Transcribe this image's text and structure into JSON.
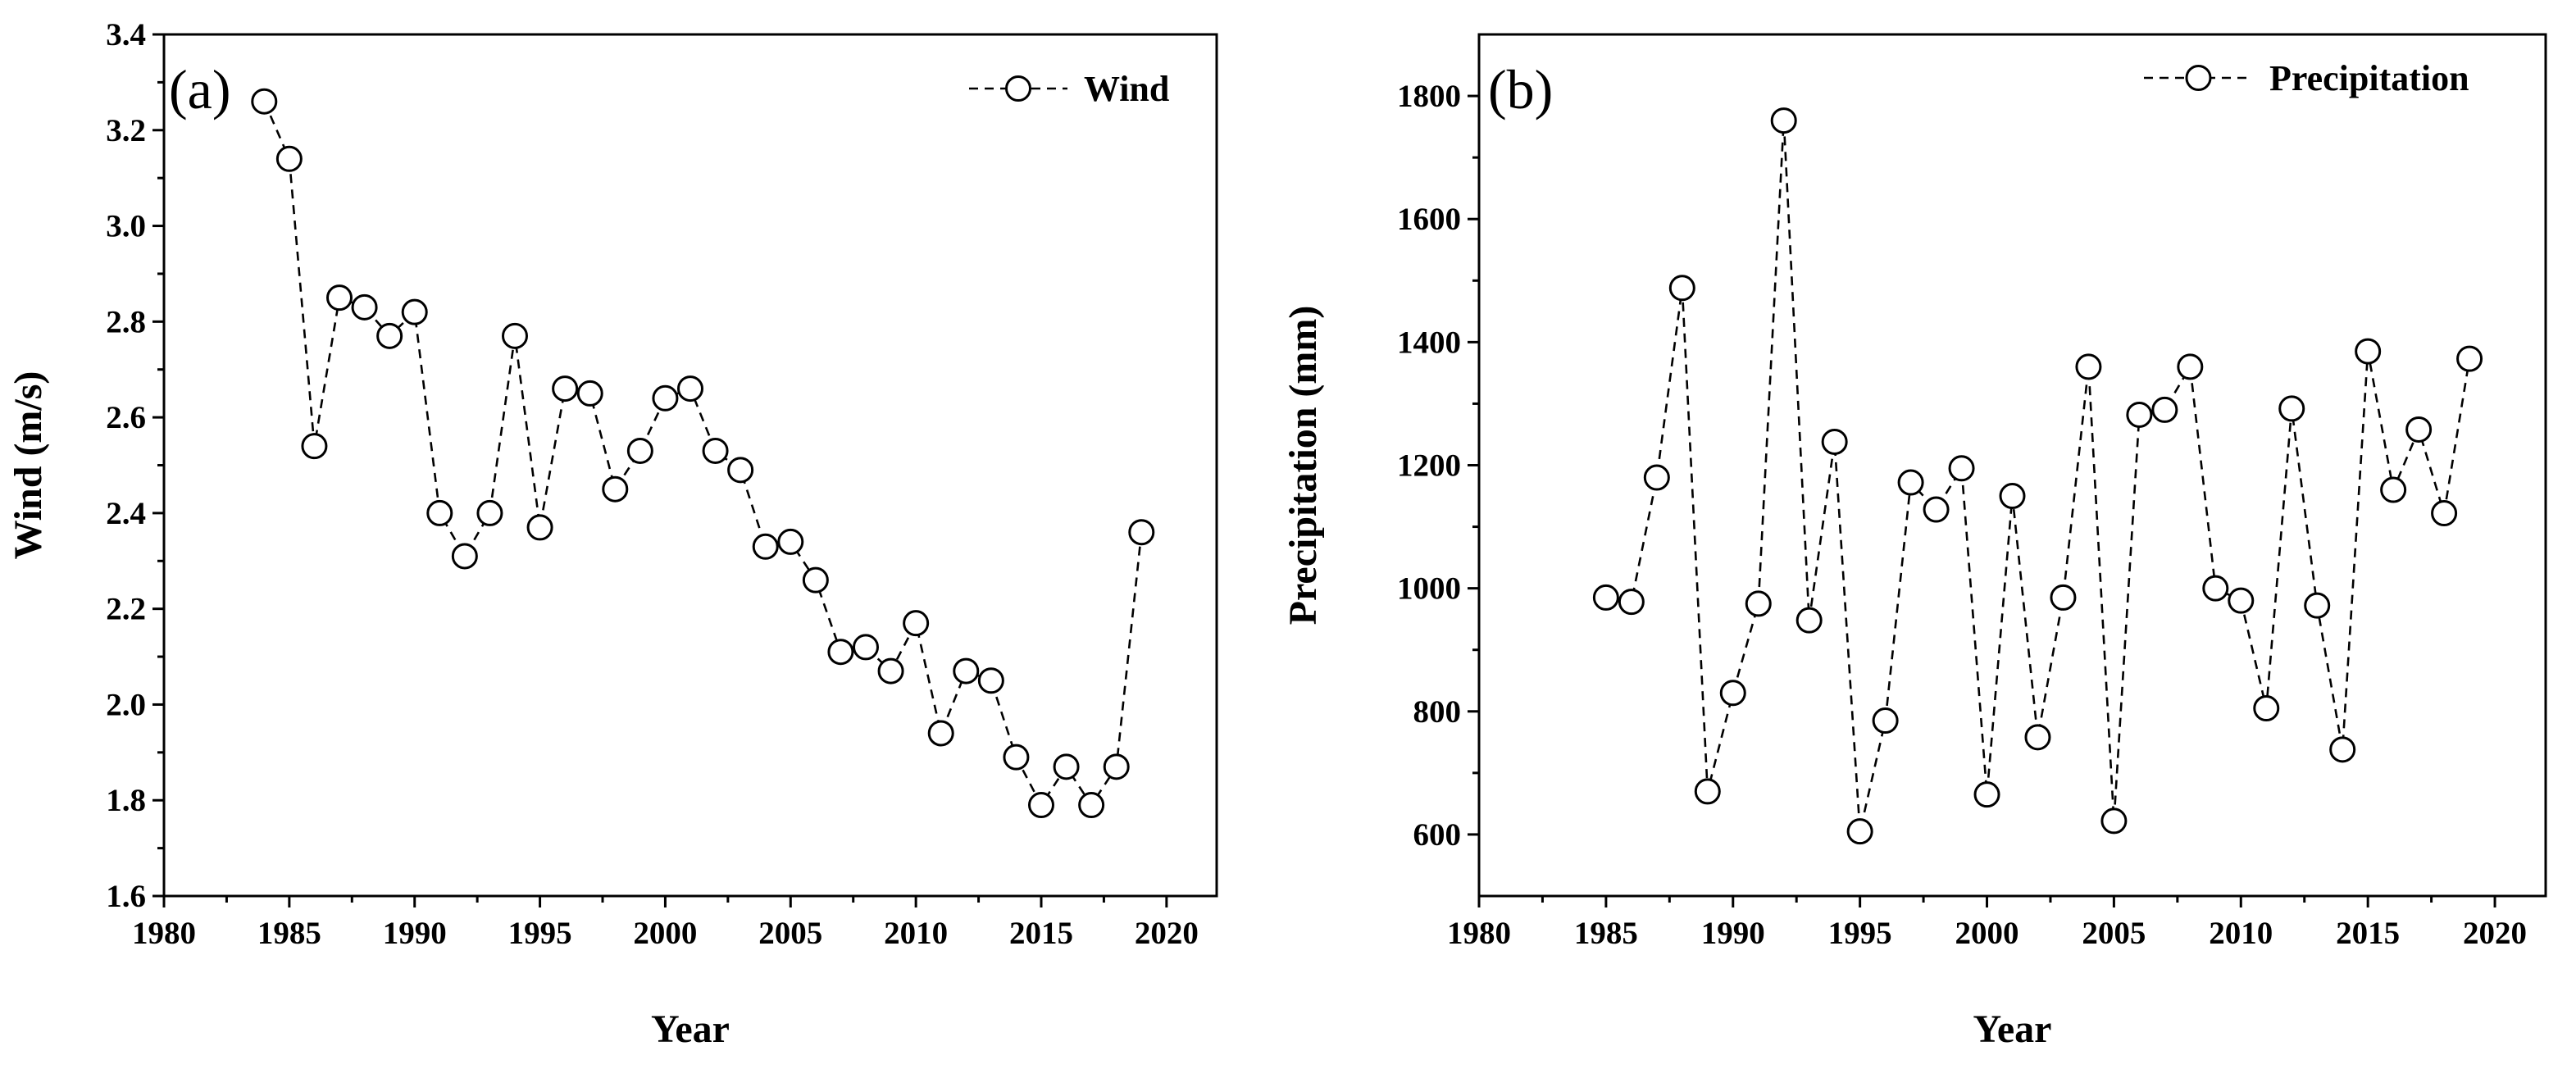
{
  "chart_data": [
    {
      "type": "line",
      "panel_label": "(a)",
      "title": "",
      "xlabel": "Year",
      "ylabel": "Wind (m/s)",
      "xlim": [
        1980,
        2022
      ],
      "ylim": [
        1.6,
        3.4
      ],
      "xticks": [
        1980,
        1985,
        1990,
        1995,
        2000,
        2005,
        2010,
        2015,
        2020
      ],
      "yticks": [
        1.6,
        1.8,
        2.0,
        2.2,
        2.4,
        2.6,
        2.8,
        3.0,
        3.2,
        3.4
      ],
      "ytick_labels": [
        "1.6",
        "1.8",
        "2.0",
        "2.2",
        "2.4",
        "2.6",
        "2.8",
        "3.0",
        "3.2",
        "3.4"
      ],
      "legend": {
        "position": "top-right",
        "label": "Wind"
      },
      "grid": false,
      "series": [
        {
          "name": "Wind",
          "style": "dashed line, open circle markers",
          "x": [
            1984,
            1985,
            1986,
            1987,
            1988,
            1989,
            1990,
            1991,
            1992,
            1993,
            1994,
            1995,
            1996,
            1997,
            1998,
            1999,
            2000,
            2001,
            2002,
            2003,
            2004,
            2005,
            2006,
            2007,
            2008,
            2009,
            2010,
            2011,
            2012,
            2013,
            2014,
            2015,
            2016,
            2017,
            2018,
            2019
          ],
          "y": [
            3.26,
            3.14,
            2.54,
            2.85,
            2.83,
            2.77,
            2.82,
            2.4,
            2.31,
            2.4,
            2.77,
            2.37,
            2.66,
            2.65,
            2.45,
            2.53,
            2.64,
            2.66,
            2.53,
            2.49,
            2.33,
            2.34,
            2.26,
            2.11,
            2.12,
            2.07,
            2.17,
            1.94,
            2.07,
            2.05,
            1.89,
            1.79,
            1.87,
            1.79,
            1.87,
            2.36
          ]
        }
      ]
    },
    {
      "type": "line",
      "panel_label": "(b)",
      "title": "",
      "xlabel": "Year",
      "ylabel": "Precipitation (mm)",
      "xlim": [
        1980,
        2022
      ],
      "ylim": [
        500,
        1900
      ],
      "xticks": [
        1980,
        1985,
        1990,
        1995,
        2000,
        2005,
        2010,
        2015,
        2020
      ],
      "yticks": [
        600,
        800,
        1000,
        1200,
        1400,
        1600,
        1800
      ],
      "ytick_labels": [
        "600",
        "800",
        "1000",
        "1200",
        "1400",
        "1600",
        "1800"
      ],
      "legend": {
        "position": "top-right",
        "label": "Precipitation"
      },
      "grid": false,
      "series": [
        {
          "name": "Precipitation",
          "style": "dashed line, open circle markers",
          "x": [
            1985,
            1986,
            1987,
            1988,
            1989,
            1990,
            1991,
            1992,
            1993,
            1994,
            1995,
            1996,
            1997,
            1998,
            1999,
            2000,
            2001,
            2002,
            2003,
            2004,
            2005,
            2006,
            2007,
            2008,
            2009,
            2010,
            2011,
            2012,
            2013,
            2014,
            2015,
            2016,
            2017,
            2018,
            2019
          ],
          "y": [
            985,
            978,
            1180,
            1488,
            670,
            830,
            975,
            1760,
            948,
            1238,
            605,
            785,
            1172,
            1128,
            1195,
            665,
            1150,
            758,
            985,
            1360,
            622,
            1282,
            1290,
            1360,
            1000,
            980,
            805,
            1292,
            972,
            738,
            1385,
            1160,
            1258,
            1122,
            1373
          ]
        }
      ]
    }
  ]
}
